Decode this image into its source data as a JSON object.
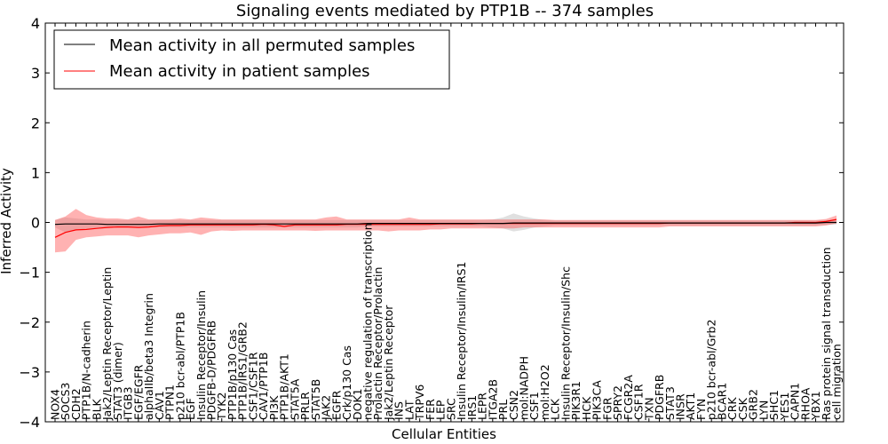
{
  "chart_data": {
    "type": "line",
    "title": "Signaling events mediated by PTP1B -- 374 samples",
    "xlabel": "Cellular Entities",
    "ylabel": "Inferred Activity",
    "ylim": [
      -4,
      4
    ],
    "yticks": [
      4,
      3,
      2,
      1,
      0,
      -1,
      -2,
      -3,
      -4
    ],
    "ytick_labels": [
      "4",
      "3",
      "2",
      "1",
      "0",
      "−1",
      "−2",
      "−3",
      "−4"
    ],
    "grid": false,
    "legend_position": "top-left",
    "categories": [
      "NOX4",
      "SOCS3",
      "CDH2",
      "PTP1B/N-cadherin",
      "BLK",
      "Jak2/Leptin Receptor/Leptin",
      "STAT3 (dimer)",
      "ITGB3",
      "EGF/EGFR",
      "alphaIIb/beta3 Integrin",
      "CAV1",
      "PTPN1",
      "p210 bcr-abl/PTP1B",
      "EGF",
      "Insulin Receptor/Insulin",
      "PDGFB-D/PDGFRB",
      "TYK2",
      "PTP1B/p130 Cas",
      "PTP1B/IRS1/GRB2",
      "CSF1/CSF1R",
      "CAV1/PTP1B",
      "PI3K",
      "PTP1B/AKT1",
      "STAT5A",
      "PRLR",
      "STAT5B",
      "JAK2",
      "EGFR",
      "Crk/p130 Cas",
      "DOK1",
      "negative regulation of transcription",
      "Prolactin Receptor/Prolactin",
      "Jak2/Leptin Receptor",
      "INS",
      "LAT",
      "TRPV6",
      "FER",
      "LEP",
      "SRC",
      "Insulin Receptor/Insulin/IRS1",
      "IRS1",
      "LEPR",
      "ITGA2B",
      "PRL",
      "CSN2",
      "mol:NADPH",
      "CSF1",
      "mol:H2O2",
      "LCK",
      "Insulin Receptor/Insulin/Shc",
      "PIK3R1",
      "HCK",
      "PIK3CA",
      "FGR",
      "SPRY2",
      "FCGR2A",
      "CSF1R",
      "TXN",
      "PDGFRB",
      "STAT3",
      "INSR",
      "AKT1",
      "FYN",
      "p210 bcr-abl/Grb2",
      "BCAR1",
      "CRK",
      "CSK",
      "GRB2",
      "LYN",
      "SHC1",
      "YES1",
      "CAPN1",
      "RHOA",
      "YBX1",
      "Ras protein signal transduction",
      "cell migration"
    ],
    "series": [
      {
        "name": "Mean activity in all permuted samples",
        "color": "#000000",
        "values": [
          -0.04,
          -0.03,
          -0.03,
          -0.03,
          -0.03,
          -0.04,
          -0.04,
          -0.04,
          -0.04,
          -0.04,
          -0.03,
          -0.03,
          -0.03,
          -0.03,
          -0.03,
          -0.03,
          -0.03,
          -0.03,
          -0.03,
          -0.03,
          -0.03,
          -0.03,
          -0.03,
          -0.03,
          -0.03,
          -0.03,
          -0.03,
          -0.03,
          -0.03,
          -0.03,
          -0.02,
          -0.02,
          -0.02,
          -0.02,
          -0.02,
          -0.02,
          -0.02,
          -0.02,
          -0.02,
          -0.02,
          -0.02,
          -0.02,
          -0.02,
          -0.02,
          -0.01,
          -0.01,
          -0.01,
          -0.01,
          -0.01,
          -0.01,
          -0.01,
          -0.01,
          -0.01,
          -0.01,
          -0.01,
          -0.01,
          -0.01,
          -0.01,
          -0.01,
          -0.01,
          -0.01,
          -0.01,
          -0.01,
          -0.01,
          -0.01,
          -0.01,
          -0.01,
          -0.01,
          -0.01,
          -0.01,
          -0.01,
          -0.01,
          -0.01,
          -0.01,
          0.0,
          0.0
        ],
        "lower": [
          -0.1,
          -0.2,
          -0.15,
          -0.12,
          -0.12,
          -0.1,
          -0.1,
          -0.1,
          -0.1,
          -0.1,
          -0.1,
          -0.1,
          -0.1,
          -0.1,
          -0.1,
          -0.1,
          -0.1,
          -0.1,
          -0.1,
          -0.1,
          -0.1,
          -0.1,
          -0.1,
          -0.1,
          -0.1,
          -0.1,
          -0.1,
          -0.1,
          -0.1,
          -0.1,
          -0.08,
          -0.08,
          -0.08,
          -0.08,
          -0.08,
          -0.08,
          -0.08,
          -0.08,
          -0.08,
          -0.08,
          -0.08,
          -0.08,
          -0.1,
          -0.12,
          -0.18,
          -0.15,
          -0.1,
          -0.08,
          -0.06,
          -0.06,
          -0.06,
          -0.06,
          -0.06,
          -0.06,
          -0.06,
          -0.06,
          -0.06,
          -0.06,
          -0.06,
          -0.06,
          -0.06,
          -0.06,
          -0.06,
          -0.06,
          -0.06,
          -0.06,
          -0.06,
          -0.06,
          -0.06,
          -0.06,
          -0.06,
          -0.06,
          -0.06,
          -0.06,
          -0.05,
          -0.04
        ],
        "upper": [
          0.05,
          0.1,
          0.08,
          0.06,
          0.06,
          0.05,
          0.05,
          0.05,
          0.05,
          0.05,
          0.05,
          0.05,
          0.05,
          0.05,
          0.05,
          0.05,
          0.05,
          0.05,
          0.05,
          0.05,
          0.05,
          0.05,
          0.05,
          0.05,
          0.05,
          0.05,
          0.05,
          0.05,
          0.05,
          0.05,
          0.05,
          0.05,
          0.05,
          0.05,
          0.05,
          0.05,
          0.05,
          0.05,
          0.05,
          0.05,
          0.05,
          0.05,
          0.06,
          0.1,
          0.18,
          0.12,
          0.08,
          0.05,
          0.04,
          0.04,
          0.04,
          0.04,
          0.04,
          0.04,
          0.04,
          0.04,
          0.04,
          0.04,
          0.04,
          0.04,
          0.04,
          0.04,
          0.04,
          0.04,
          0.04,
          0.04,
          0.04,
          0.04,
          0.04,
          0.04,
          0.04,
          0.04,
          0.04,
          0.04,
          0.05,
          0.05
        ]
      },
      {
        "name": "Mean activity in patient samples",
        "color": "#ff0000",
        "values": [
          -0.3,
          -0.2,
          -0.15,
          -0.14,
          -0.12,
          -0.1,
          -0.09,
          -0.09,
          -0.1,
          -0.09,
          -0.07,
          -0.06,
          -0.06,
          -0.05,
          -0.05,
          -0.05,
          -0.05,
          -0.05,
          -0.05,
          -0.05,
          -0.04,
          -0.05,
          -0.08,
          -0.05,
          -0.05,
          -0.05,
          -0.05,
          -0.05,
          -0.04,
          -0.04,
          -0.04,
          -0.04,
          -0.04,
          -0.04,
          -0.04,
          -0.04,
          -0.04,
          -0.03,
          -0.03,
          -0.03,
          -0.03,
          -0.02,
          -0.02,
          -0.02,
          -0.02,
          -0.02,
          -0.02,
          -0.02,
          -0.02,
          -0.02,
          -0.02,
          -0.02,
          -0.02,
          -0.02,
          -0.02,
          -0.02,
          -0.02,
          -0.02,
          -0.02,
          -0.01,
          -0.01,
          -0.01,
          -0.01,
          -0.01,
          -0.01,
          -0.01,
          -0.01,
          -0.01,
          -0.01,
          -0.01,
          -0.01,
          0.0,
          0.0,
          0.0,
          0.02,
          0.06
        ],
        "lower": [
          -0.6,
          -0.58,
          -0.35,
          -0.3,
          -0.28,
          -0.26,
          -0.26,
          -0.26,
          -0.3,
          -0.26,
          -0.24,
          -0.22,
          -0.22,
          -0.2,
          -0.25,
          -0.18,
          -0.16,
          -0.17,
          -0.16,
          -0.16,
          -0.16,
          -0.16,
          -0.16,
          -0.16,
          -0.16,
          -0.17,
          -0.16,
          -0.16,
          -0.16,
          -0.16,
          -0.16,
          -0.16,
          -0.18,
          -0.16,
          -0.16,
          -0.16,
          -0.14,
          -0.14,
          -0.12,
          -0.12,
          -0.12,
          -0.12,
          -0.12,
          -0.12,
          -0.12,
          -0.1,
          -0.1,
          -0.1,
          -0.1,
          -0.1,
          -0.1,
          -0.1,
          -0.1,
          -0.1,
          -0.1,
          -0.1,
          -0.1,
          -0.1,
          -0.1,
          -0.08,
          -0.08,
          -0.08,
          -0.08,
          -0.08,
          -0.08,
          -0.08,
          -0.08,
          -0.08,
          -0.08,
          -0.08,
          -0.08,
          -0.08,
          -0.08,
          -0.08,
          -0.06,
          -0.02
        ],
        "upper": [
          0.05,
          0.12,
          0.27,
          0.15,
          0.1,
          0.08,
          0.08,
          0.06,
          0.12,
          0.06,
          0.06,
          0.06,
          0.08,
          0.06,
          0.1,
          0.08,
          0.06,
          0.06,
          0.06,
          0.06,
          0.06,
          0.06,
          0.06,
          0.06,
          0.06,
          0.06,
          0.1,
          0.12,
          0.06,
          0.06,
          0.06,
          0.06,
          0.06,
          0.06,
          0.1,
          0.06,
          0.06,
          0.06,
          0.06,
          0.06,
          0.06,
          0.06,
          0.06,
          0.06,
          0.06,
          0.06,
          0.06,
          0.06,
          0.05,
          0.05,
          0.05,
          0.05,
          0.05,
          0.05,
          0.05,
          0.05,
          0.05,
          0.05,
          0.05,
          0.05,
          0.05,
          0.05,
          0.05,
          0.05,
          0.05,
          0.05,
          0.05,
          0.05,
          0.05,
          0.05,
          0.05,
          0.05,
          0.05,
          0.05,
          0.07,
          0.14
        ]
      }
    ]
  }
}
